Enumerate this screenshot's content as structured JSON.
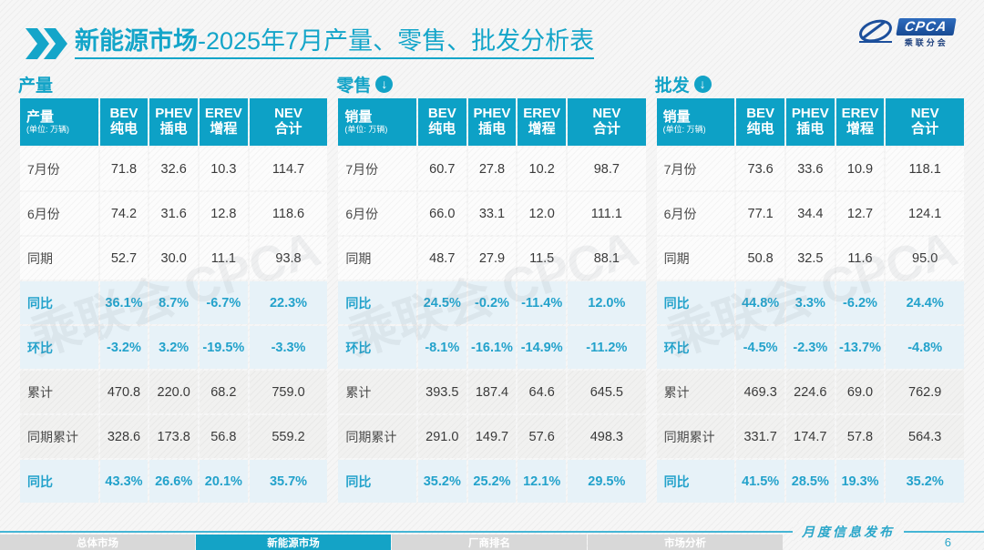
{
  "header": {
    "title_bold": "新能源市场",
    "title_rest": "-2025年7月产量、零售、批发分析表",
    "logo": {
      "brand": "CPCA",
      "subtext": "乘联分会"
    }
  },
  "watermark": "乘联会 CPCA",
  "tables": [
    {
      "section_label": "产量",
      "has_arrow": false,
      "arrow_glyph": "↓",
      "head": {
        "label": "产量",
        "unit": "(单位: 万辆)",
        "cols": [
          [
            "BEV",
            "纯电"
          ],
          [
            "PHEV",
            "插电"
          ],
          [
            "EREV",
            "增程"
          ],
          [
            "NEV",
            "合计"
          ]
        ]
      },
      "rows": [
        {
          "label": "7月份",
          "type": "plain",
          "values": [
            "71.8",
            "32.6",
            "10.3",
            "114.7"
          ]
        },
        {
          "label": "6月份",
          "type": "plain",
          "values": [
            "74.2",
            "31.6",
            "12.8",
            "118.6"
          ]
        },
        {
          "label": "同期",
          "type": "plain",
          "values": [
            "52.7",
            "30.0",
            "11.1",
            "93.8"
          ]
        },
        {
          "label": "同比",
          "type": "pct",
          "values": [
            "36.1%",
            "8.7%",
            "-6.7%",
            "22.3%"
          ]
        },
        {
          "label": "环比",
          "type": "pct",
          "values": [
            "-3.2%",
            "3.2%",
            "-19.5%",
            "-3.3%"
          ]
        },
        {
          "label": "累计",
          "type": "alt",
          "values": [
            "470.8",
            "220.0",
            "68.2",
            "759.0"
          ]
        },
        {
          "label": "同期累计",
          "type": "alt",
          "values": [
            "328.6",
            "173.8",
            "56.8",
            "559.2"
          ]
        },
        {
          "label": "同比",
          "type": "pct",
          "values": [
            "43.3%",
            "26.6%",
            "20.1%",
            "35.7%"
          ]
        }
      ]
    },
    {
      "section_label": "零售",
      "has_arrow": true,
      "arrow_glyph": "↓",
      "head": {
        "label": "销量",
        "unit": "(单位: 万辆)",
        "cols": [
          [
            "BEV",
            "纯电"
          ],
          [
            "PHEV",
            "插电"
          ],
          [
            "EREV",
            "增程"
          ],
          [
            "NEV",
            "合计"
          ]
        ]
      },
      "rows": [
        {
          "label": "7月份",
          "type": "plain",
          "values": [
            "60.7",
            "27.8",
            "10.2",
            "98.7"
          ]
        },
        {
          "label": "6月份",
          "type": "plain",
          "values": [
            "66.0",
            "33.1",
            "12.0",
            "111.1"
          ]
        },
        {
          "label": "同期",
          "type": "plain",
          "values": [
            "48.7",
            "27.9",
            "11.5",
            "88.1"
          ]
        },
        {
          "label": "同比",
          "type": "pct",
          "values": [
            "24.5%",
            "-0.2%",
            "-11.4%",
            "12.0%"
          ]
        },
        {
          "label": "环比",
          "type": "pct",
          "values": [
            "-8.1%",
            "-16.1%",
            "-14.9%",
            "-11.2%"
          ]
        },
        {
          "label": "累计",
          "type": "alt",
          "values": [
            "393.5",
            "187.4",
            "64.6",
            "645.5"
          ]
        },
        {
          "label": "同期累计",
          "type": "alt",
          "values": [
            "291.0",
            "149.7",
            "57.6",
            "498.3"
          ]
        },
        {
          "label": "同比",
          "type": "pct",
          "values": [
            "35.2%",
            "25.2%",
            "12.1%",
            "29.5%"
          ]
        }
      ]
    },
    {
      "section_label": "批发",
      "has_arrow": true,
      "arrow_glyph": "↓",
      "head": {
        "label": "销量",
        "unit": "(单位: 万辆)",
        "cols": [
          [
            "BEV",
            "纯电"
          ],
          [
            "PHEV",
            "插电"
          ],
          [
            "EREV",
            "增程"
          ],
          [
            "NEV",
            "合计"
          ]
        ]
      },
      "rows": [
        {
          "label": "7月份",
          "type": "plain",
          "values": [
            "73.6",
            "33.6",
            "10.9",
            "118.1"
          ]
        },
        {
          "label": "6月份",
          "type": "plain",
          "values": [
            "77.1",
            "34.4",
            "12.7",
            "124.1"
          ]
        },
        {
          "label": "同期",
          "type": "plain",
          "values": [
            "50.8",
            "32.5",
            "11.6",
            "95.0"
          ]
        },
        {
          "label": "同比",
          "type": "pct",
          "values": [
            "44.8%",
            "3.3%",
            "-6.2%",
            "24.4%"
          ]
        },
        {
          "label": "环比",
          "type": "pct",
          "values": [
            "-4.5%",
            "-2.3%",
            "-13.7%",
            "-4.8%"
          ]
        },
        {
          "label": "累计",
          "type": "alt",
          "values": [
            "469.3",
            "224.6",
            "69.0",
            "762.9"
          ]
        },
        {
          "label": "同期累计",
          "type": "alt",
          "values": [
            "331.7",
            "174.7",
            "57.8",
            "564.3"
          ]
        },
        {
          "label": "同比",
          "type": "pct",
          "values": [
            "41.5%",
            "28.5%",
            "19.3%",
            "35.2%"
          ]
        }
      ]
    }
  ],
  "footer": {
    "publish_label": "月度信息发布",
    "page_number": "6",
    "tabs": [
      {
        "label": "总体市场",
        "active": false
      },
      {
        "label": "新能源市场",
        "active": true
      },
      {
        "label": "厂商排名",
        "active": false
      },
      {
        "label": "市场分析",
        "active": false
      }
    ]
  },
  "colors": {
    "accent_cyan": "#12a3c7",
    "header_bg": "#0da1c6",
    "pct_row_bg": "#e7f2f8",
    "pct_text": "#23a2cb",
    "tab_active": "#14a3c6",
    "tab_inactive": "#d8d8d8",
    "logo_blue": "#1c4f9c"
  }
}
